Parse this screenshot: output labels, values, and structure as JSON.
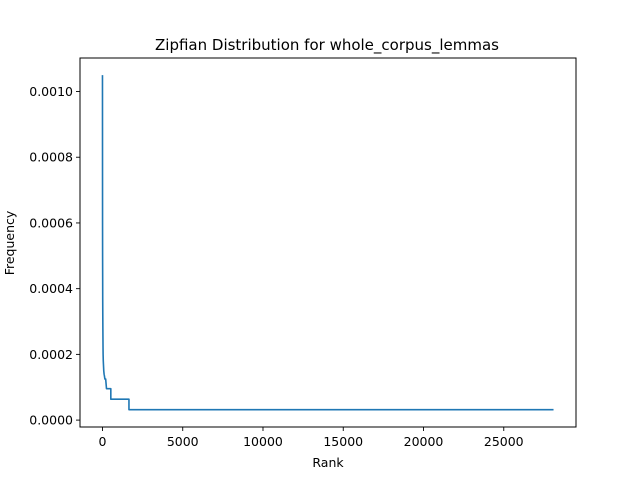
{
  "chart_data": {
    "type": "line",
    "title": "Zipfian Distribution for whole_corpus_lemmas",
    "xlabel": "Rank",
    "ylabel": "Frequency",
    "xlim": [
      -1400,
      29500
    ],
    "ylim": [
      -2.1e-05,
      0.001102
    ],
    "x_ticks": [
      0,
      5000,
      10000,
      15000,
      20000,
      25000
    ],
    "x_tick_labels": [
      "0",
      "5000",
      "10000",
      "15000",
      "20000",
      "25000"
    ],
    "y_ticks": [
      0.0,
      0.0002,
      0.0004,
      0.0006,
      0.0008,
      0.001
    ],
    "y_tick_labels": [
      "0.0000",
      "0.0002",
      "0.0004",
      "0.0006",
      "0.0008",
      "0.0010"
    ],
    "grid": false,
    "legend": "none",
    "series": [
      {
        "color": "#1f77b4",
        "x": [
          0,
          3,
          5,
          8,
          12,
          15,
          20,
          25,
          30,
          35,
          40,
          50,
          60,
          70,
          80,
          100,
          120,
          150,
          200,
          250,
          300,
          520,
          520,
          1650,
          1650,
          28100
        ],
        "y": [
          0.00105,
          0.00075,
          0.0006,
          0.0005,
          0.00043,
          0.00037,
          0.00032,
          0.00028,
          0.00025,
          0.00022,
          0.0002,
          0.00018,
          0.00017,
          0.00016,
          0.00015,
          0.00014,
          0.000135,
          0.000125,
          0.000125,
          9.55e-05,
          9.55e-05,
          9.55e-05,
          6.36e-05,
          6.36e-05,
          3.18e-05,
          3.18e-05
        ]
      }
    ]
  }
}
